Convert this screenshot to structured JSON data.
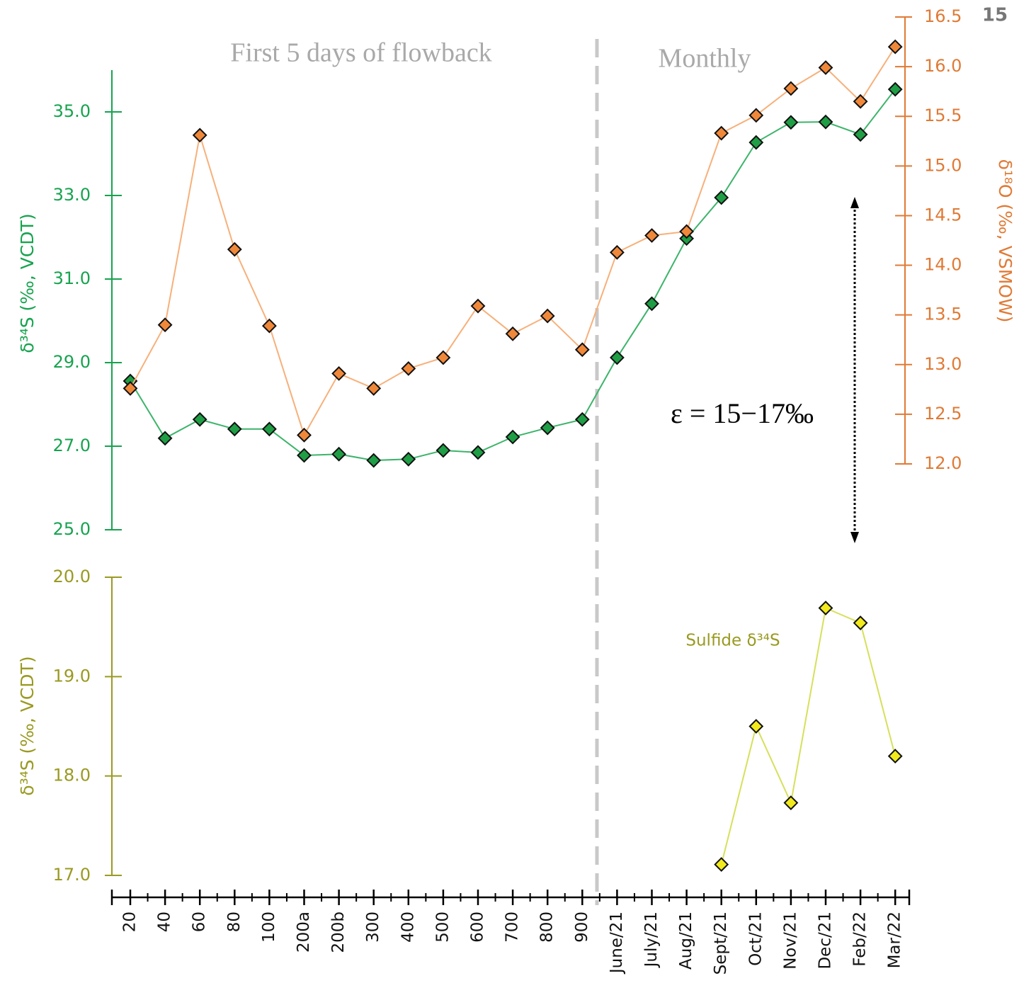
{
  "chart_data": {
    "type": "line",
    "page_number": "15",
    "annotations": {
      "flowback": "First 5 days of flowback",
      "monthly": "Monthly",
      "epsilon": "ε = 15−17‰"
    },
    "categories": [
      "20",
      "40",
      "60",
      "80",
      "100",
      "200a",
      "200b",
      "300",
      "400",
      "500",
      "600",
      "700",
      "800",
      "900",
      "June/21",
      "July/21",
      "Aug/21",
      "Sept/21",
      "Oct/21",
      "Nov/21",
      "Dec/21",
      "Feb/22",
      "Mar/22"
    ],
    "panels": [
      {
        "ylabel": "δ³⁴S (‰, VCDT)",
        "axis_color": "#17a34f",
        "ylim": [
          25,
          36
        ],
        "yticks": [
          {
            "value": 25,
            "label": "25.0"
          },
          {
            "value": 27,
            "label": "27.0"
          },
          {
            "value": 29,
            "label": "29.0"
          },
          {
            "value": 31,
            "label": "31.0"
          },
          {
            "value": 33,
            "label": "33.0"
          },
          {
            "value": 35,
            "label": "35.0"
          }
        ],
        "y2label": "δ¹⁸O (‰, VSMOW)",
        "y2_axis_color": "#e07a35",
        "y2lim": [
          12,
          16.5
        ],
        "y2ticks": [
          {
            "value": 12,
            "label": "12.0"
          },
          {
            "value": 12.5,
            "label": "12.5"
          },
          {
            "value": 13,
            "label": "13.0"
          },
          {
            "value": 13.5,
            "label": "13.5"
          },
          {
            "value": 14,
            "label": "14.0"
          },
          {
            "value": 14.5,
            "label": "14.5"
          },
          {
            "value": 15,
            "label": "15.0"
          },
          {
            "value": 15.5,
            "label": "15.5"
          },
          {
            "value": 16,
            "label": "16.0"
          },
          16.5
        ],
        "series": [
          {
            "color": "#1f9e45",
            "line_color": "#3cb46a",
            "axis": "y",
            "values": [
              28.56,
              27.19,
              27.64,
              27.41,
              27.41,
              26.78,
              26.81,
              26.66,
              26.69,
              26.9,
              26.85,
              27.22,
              27.44,
              27.64,
              29.12,
              30.41,
              31.97,
              32.95,
              34.27,
              34.75,
              34.76,
              34.46,
              35.54
            ]
          },
          {
            "color": "#f0883a",
            "line_color": "#f7b07a",
            "axis": "y2",
            "values": [
              12.76,
              13.4,
              15.31,
              14.16,
              13.39,
              12.29,
              12.91,
              12.76,
              12.96,
              13.07,
              13.59,
              13.31,
              13.49,
              13.15,
              14.13,
              14.3,
              14.34,
              15.33,
              15.51,
              15.78,
              15.99,
              15.65,
              16.2
            ]
          }
        ]
      },
      {
        "ylabel": "δ³⁴S (‰, VCDT)",
        "axis_color": "#9a9a22",
        "ylim": [
          17,
          20
        ],
        "yticks": [
          {
            "value": 17,
            "label": "17.0"
          },
          {
            "value": 18,
            "label": "18.0"
          },
          {
            "value": 19,
            "label": "19.0"
          },
          {
            "value": 20,
            "label": "20.0"
          }
        ],
        "series": [
          {
            "name": "Sulfide δ³⁴S",
            "color": "#f2ea1c",
            "line_color": "#d6e05a",
            "axis": "y",
            "values": [
              null,
              null,
              null,
              null,
              null,
              null,
              null,
              null,
              null,
              null,
              null,
              null,
              null,
              null,
              null,
              null,
              null,
              17.11,
              18.5,
              17.73,
              19.69,
              19.54,
              18.2
            ]
          }
        ]
      }
    ]
  }
}
